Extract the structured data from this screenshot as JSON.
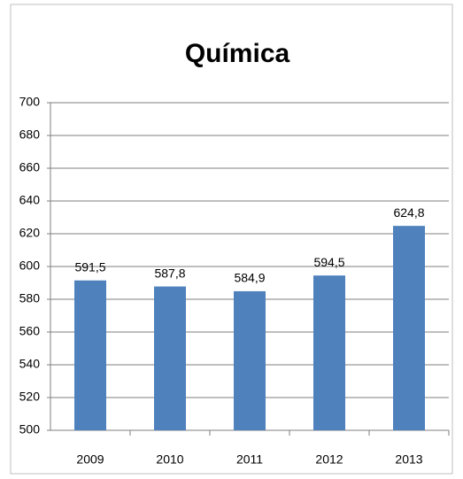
{
  "chart_data": {
    "type": "bar",
    "title": "Química",
    "categories": [
      "2009",
      "2010",
      "2011",
      "2012",
      "2013"
    ],
    "values": [
      591.5,
      587.8,
      584.9,
      594.5,
      624.8
    ],
    "value_labels": [
      "591,5",
      "587,8",
      "584,9",
      "594,5",
      "624,8"
    ],
    "color": "#4f81bd",
    "ylim": [
      500,
      700
    ],
    "yticks": [
      500,
      520,
      540,
      560,
      580,
      600,
      620,
      640,
      660,
      680,
      700
    ],
    "grid": true
  }
}
